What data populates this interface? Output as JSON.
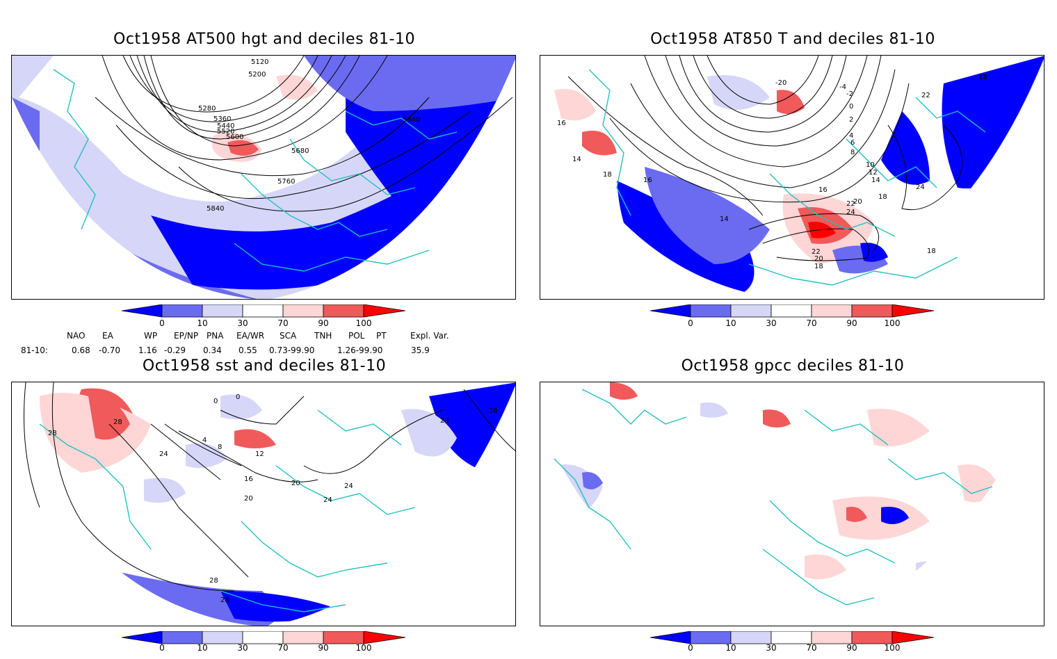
{
  "panels": [
    {
      "id": "hgt500",
      "title": "Oct1958 AT500 hgt and deciles 81-10"
    },
    {
      "id": "t850",
      "title": "Oct1958 AT850 T and deciles 81-10"
    },
    {
      "id": "sst",
      "title": "Oct1958 sst and deciles 81-10"
    },
    {
      "id": "gpcc",
      "title": "Oct1958 gpcc deciles 81-10"
    }
  ],
  "colorbar": {
    "ticks": [
      "0",
      "10",
      "30",
      "70",
      "90",
      "100"
    ],
    "colors": [
      "#0000ff",
      "#6b6bf2",
      "#d6d6f8",
      "#ffffff",
      "#ffd6d6",
      "#f05a5a",
      "#ff0000"
    ]
  },
  "contour_labels": {
    "hgt500": [
      "5120",
      "5200",
      "5280",
      "5360",
      "5440",
      "5520",
      "5600",
      "5680",
      "5760",
      "5840",
      "5840"
    ],
    "t850": [
      "-20",
      "-4",
      "-2",
      "0",
      "2",
      "4",
      "6",
      "8",
      "10",
      "12",
      "14",
      "16",
      "18",
      "20",
      "22",
      "24",
      "14",
      "16",
      "18",
      "24",
      "22",
      "20",
      "18",
      "16",
      "14",
      "18",
      "22",
      "18"
    ],
    "sst": [
      "0",
      "0",
      "28",
      "24",
      "28",
      "4",
      "8",
      "12",
      "16",
      "20",
      "24",
      "20",
      "24",
      "28",
      "28",
      "28",
      "28"
    ]
  },
  "indices": {
    "headers": [
      "NAO",
      "EA",
      "WP",
      "EP/NP",
      "PNA",
      "EA/WR",
      "SCA",
      "TNH",
      "POL",
      "PT",
      "Expl. Var."
    ],
    "row_label": "81-10:",
    "values": [
      "0.68",
      "-0.70",
      "1.16",
      "-0.29",
      "0.34",
      "0.55",
      "0.73-99.90",
      "1.26-99.90",
      "35.9"
    ]
  }
}
